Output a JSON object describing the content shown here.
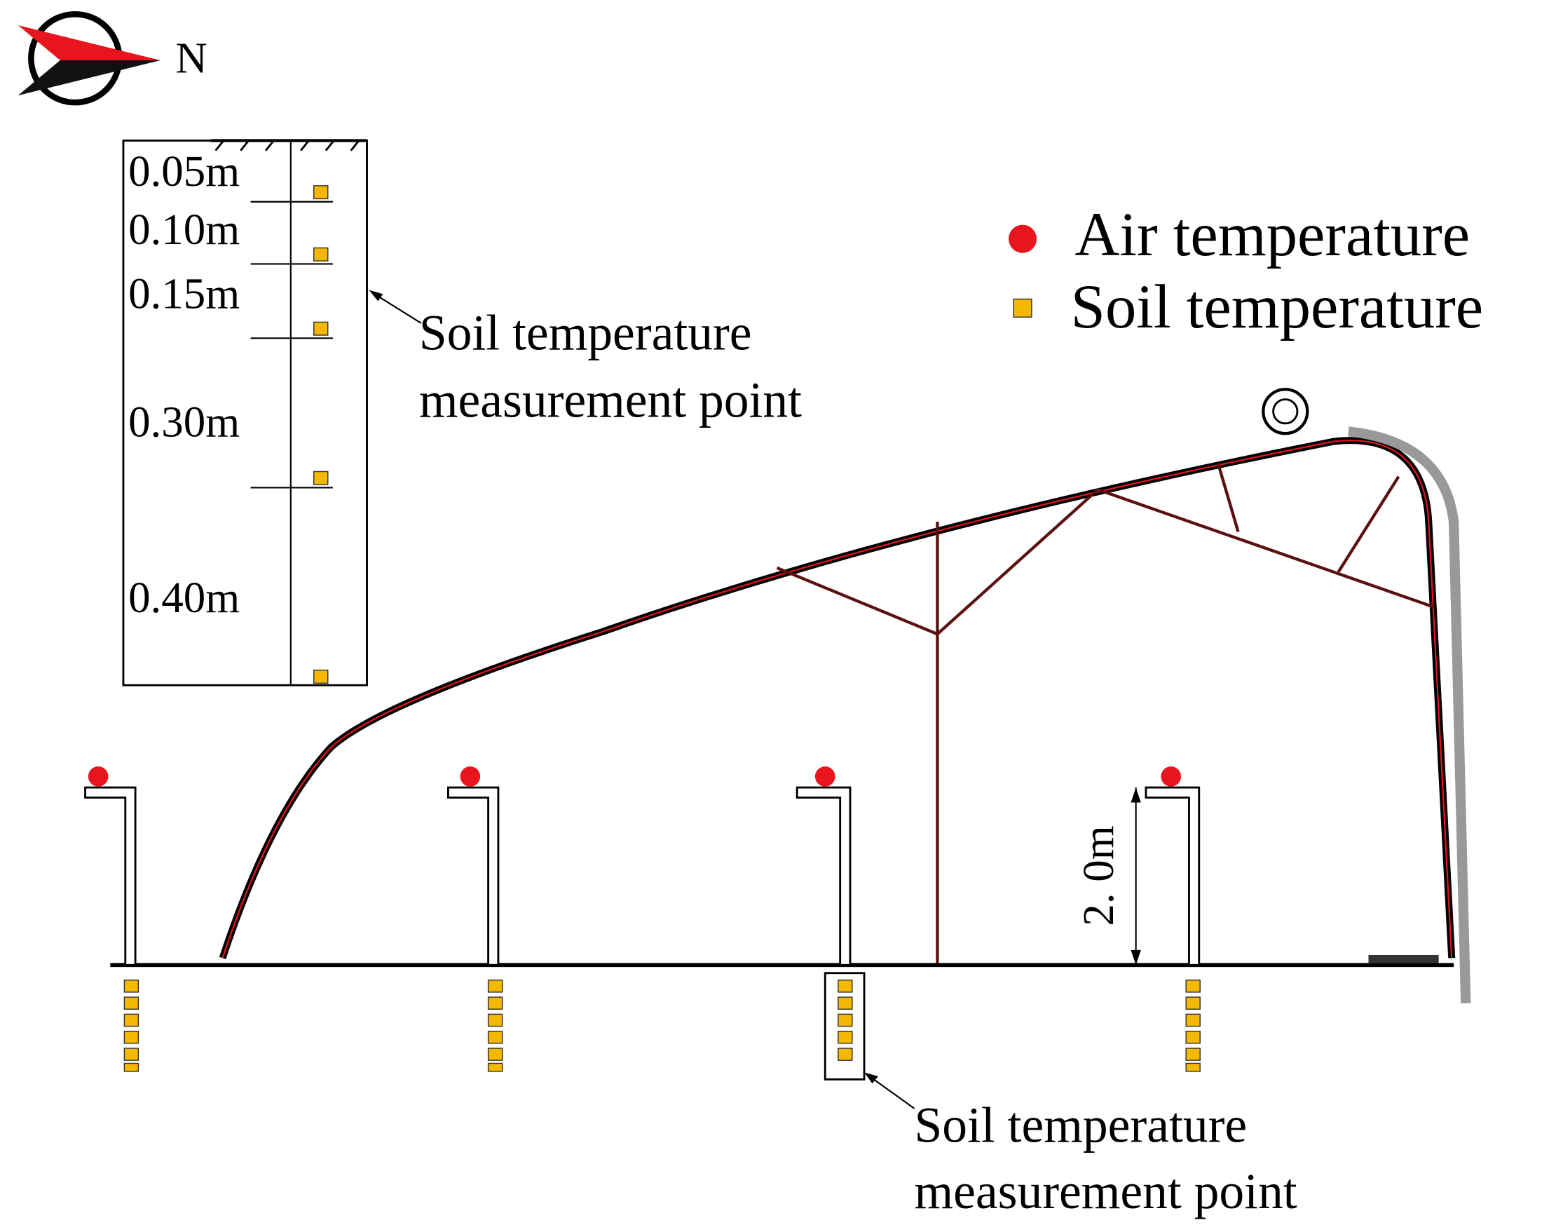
{
  "compass": {
    "label": "N"
  },
  "depth_profile": {
    "labels": [
      "0.05m",
      "0.10m",
      "0.15m",
      "0.30m",
      "0.40m"
    ]
  },
  "callouts": [
    {
      "lines": [
        "Soil temperature",
        "measurement point"
      ]
    },
    {
      "lines": [
        "Soil temperature",
        "measurement point"
      ]
    }
  ],
  "legend": {
    "items": [
      {
        "label": "Air temperature"
      },
      {
        "label": "Soil temperature"
      }
    ]
  },
  "dimension": {
    "label": "2. 0m"
  }
}
